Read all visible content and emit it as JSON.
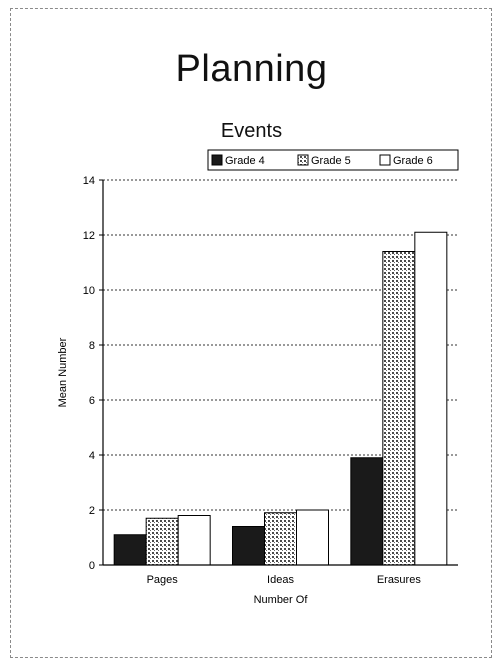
{
  "slide": {
    "title": "Planning"
  },
  "chart_data": {
    "type": "bar",
    "title": "Events",
    "xlabel": "Number Of",
    "ylabel": "Mean Number",
    "categories": [
      "Pages",
      "Ideas",
      "Erasures"
    ],
    "series": [
      {
        "name": "Grade 4",
        "values": [
          1.1,
          1.4,
          3.9
        ]
      },
      {
        "name": "Grade 5",
        "values": [
          1.7,
          1.9,
          11.4
        ]
      },
      {
        "name": "Grade 6",
        "values": [
          1.8,
          2.0,
          12.1
        ]
      }
    ],
    "ylim": [
      0,
      14
    ],
    "yticks": [
      0,
      2,
      4,
      6,
      8,
      10,
      12,
      14
    ],
    "grid": true,
    "legend": "top-right",
    "colors": {
      "Grade 4": "#1a1a1a",
      "Grade 5": "#9a9a9a",
      "Grade 6": "#ffffff"
    }
  }
}
